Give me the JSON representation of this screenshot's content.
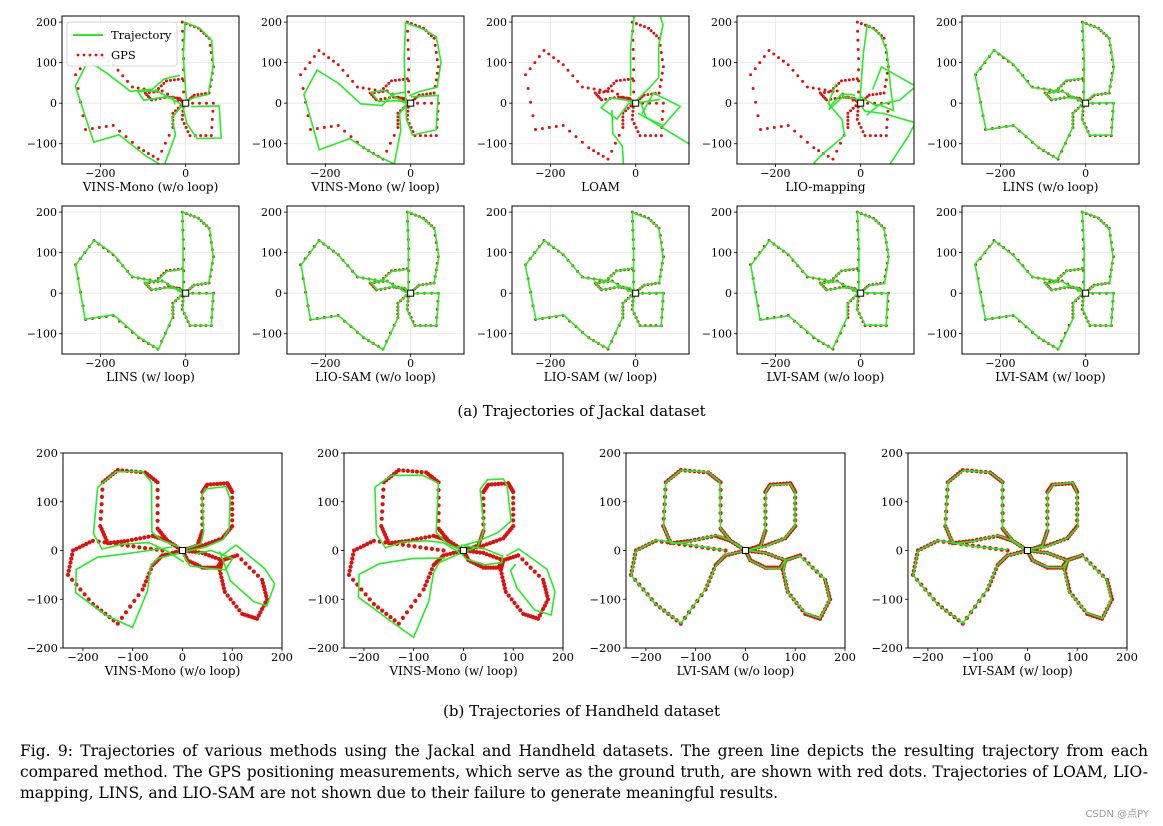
{
  "figure": {
    "sub_a": "(a) Trajectories of Jackal dataset",
    "sub_b": "(b) Trajectories of Handheld dataset",
    "caption": "Fig. 9: Trajectories of various methods using the Jackal and Handheld datasets. The green line depicts the resulting trajectory from each compared method. The GPS positioning measurements, which serve as the ground truth, are shown with red dots. Trajectories of LOAM, LIO-mapping, LINS, and LIO-SAM are not shown due to their failure to generate meaningful results.",
    "watermark": "CSDN @点PY"
  },
  "colors": {
    "trajectory": "#22ee22",
    "gps": "#e01010",
    "frame": "#000000",
    "grid": "#e6e6e6"
  },
  "chart_data": [
    {
      "type": "line",
      "subtitle": "VINS-Mono (w/o loop)",
      "dataset": "Jackal",
      "legend": [
        "Trajectory",
        "GPS"
      ],
      "legend_position": "top-left",
      "xticks": [
        -200,
        0
      ],
      "yticks": [
        -100,
        0,
        100,
        200
      ],
      "xlim": [
        -290,
        125
      ],
      "ylim": [
        -150,
        215
      ],
      "grid": true,
      "quality": "drift"
    },
    {
      "type": "line",
      "subtitle": "VINS-Mono (w/ loop)",
      "dataset": "Jackal",
      "xticks": [
        -200,
        0
      ],
      "yticks": [
        -100,
        0,
        100,
        200
      ],
      "xlim": [
        -290,
        125
      ],
      "ylim": [
        -150,
        215
      ],
      "grid": true,
      "quality": "drift"
    },
    {
      "type": "line",
      "subtitle": "LOAM",
      "dataset": "Jackal",
      "xticks": [
        -200,
        0
      ],
      "yticks": [
        -100,
        0,
        100,
        200
      ],
      "xlim": [
        -290,
        125
      ],
      "ylim": [
        -150,
        215
      ],
      "grid": true,
      "quality": "fail"
    },
    {
      "type": "line",
      "subtitle": "LIO-mapping",
      "dataset": "Jackal",
      "xticks": [
        -200,
        0
      ],
      "yticks": [
        -100,
        0,
        100,
        200
      ],
      "xlim": [
        -290,
        125
      ],
      "ylim": [
        -150,
        215
      ],
      "grid": true,
      "quality": "fail"
    },
    {
      "type": "line",
      "subtitle": "LINS (w/o loop)",
      "dataset": "Jackal",
      "xticks": [
        -200,
        0
      ],
      "yticks": [
        -100,
        0,
        100,
        200
      ],
      "xlim": [
        -290,
        125
      ],
      "ylim": [
        -150,
        215
      ],
      "grid": true,
      "quality": "good"
    },
    {
      "type": "line",
      "subtitle": "LINS (w/ loop)",
      "dataset": "Jackal",
      "xticks": [
        -200,
        0
      ],
      "yticks": [
        -100,
        0,
        100,
        200
      ],
      "xlim": [
        -290,
        125
      ],
      "ylim": [
        -150,
        215
      ],
      "grid": true,
      "quality": "good"
    },
    {
      "type": "line",
      "subtitle": "LIO-SAM (w/o loop)",
      "dataset": "Jackal",
      "xticks": [
        -200,
        0
      ],
      "yticks": [
        -100,
        0,
        100,
        200
      ],
      "xlim": [
        -290,
        125
      ],
      "ylim": [
        -150,
        215
      ],
      "grid": true,
      "quality": "good"
    },
    {
      "type": "line",
      "subtitle": "LIO-SAM (w/ loop)",
      "dataset": "Jackal",
      "xticks": [
        -200,
        0
      ],
      "yticks": [
        -100,
        0,
        100,
        200
      ],
      "xlim": [
        -290,
        125
      ],
      "ylim": [
        -150,
        215
      ],
      "grid": true,
      "quality": "good"
    },
    {
      "type": "line",
      "subtitle": "LVI-SAM (w/o loop)",
      "dataset": "Jackal",
      "xticks": [
        -200,
        0
      ],
      "yticks": [
        -100,
        0,
        100,
        200
      ],
      "xlim": [
        -290,
        125
      ],
      "ylim": [
        -150,
        215
      ],
      "grid": true,
      "quality": "good"
    },
    {
      "type": "line",
      "subtitle": "LVI-SAM (w/ loop)",
      "dataset": "Jackal",
      "xticks": [
        -200,
        0
      ],
      "yticks": [
        -100,
        0,
        100,
        200
      ],
      "xlim": [
        -290,
        125
      ],
      "ylim": [
        -150,
        215
      ],
      "grid": true,
      "quality": "good"
    },
    {
      "type": "line",
      "subtitle": "VINS-Mono (w/o loop)",
      "dataset": "Handheld",
      "xticks": [
        -200,
        -100,
        0,
        100,
        200
      ],
      "yticks": [
        -200,
        -100,
        0,
        100,
        200
      ],
      "xlim": [
        -240,
        200
      ],
      "ylim": [
        -200,
        200
      ],
      "grid": false,
      "quality": "drift"
    },
    {
      "type": "line",
      "subtitle": "VINS-Mono (w/ loop)",
      "dataset": "Handheld",
      "xticks": [
        -200,
        -100,
        0,
        100,
        200
      ],
      "yticks": [
        -200,
        -100,
        0,
        100,
        200
      ],
      "xlim": [
        -240,
        200
      ],
      "ylim": [
        -200,
        200
      ],
      "grid": false,
      "quality": "drift"
    },
    {
      "type": "line",
      "subtitle": "LVI-SAM (w/o loop)",
      "dataset": "Handheld",
      "xticks": [
        -200,
        -100,
        0,
        100,
        200
      ],
      "yticks": [
        -200,
        -100,
        0,
        100,
        200
      ],
      "xlim": [
        -240,
        200
      ],
      "ylim": [
        -200,
        200
      ],
      "grid": false,
      "quality": "good"
    },
    {
      "type": "line",
      "subtitle": "LVI-SAM (w/ loop)",
      "dataset": "Handheld",
      "xticks": [
        -200,
        -100,
        0,
        100,
        200
      ],
      "yticks": [
        -200,
        -100,
        0,
        100,
        200
      ],
      "xlim": [
        -240,
        200
      ],
      "ylim": [
        -200,
        200
      ],
      "grid": false,
      "quality": "good"
    }
  ]
}
